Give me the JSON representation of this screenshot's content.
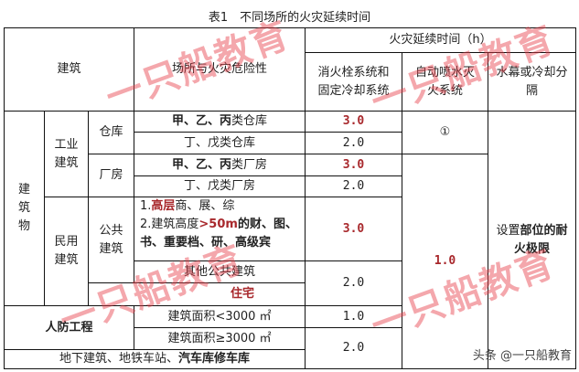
{
  "title": "表1　不同场所的火灾延续时间",
  "header": {
    "building": "建筑",
    "place_risk": "场所与火灾危险性",
    "duration": "火灾延续时间（h）",
    "hydrant": "消火栓系统和固定冷却系统",
    "sprinkler": "自动喷水灭火系统",
    "curtain": "水幕或冷却分隔"
  },
  "groups": {
    "building_obj": "建筑物",
    "industrial": "工业建筑",
    "warehouse": "仓库",
    "plant": "厂房",
    "civil": "民用建筑",
    "public": "公共建筑",
    "civil_defense": "人防工程"
  },
  "rows": [
    {
      "place_bold": "甲、乙、丙",
      "place_rest": "类仓库",
      "hydrant": "3.0"
    },
    {
      "place": "丁、戊类仓库",
      "hydrant": "2.0"
    },
    {
      "place_bold": "甲、乙、丙",
      "place_rest": "类厂房",
      "hydrant": "3.0"
    },
    {
      "place": "丁、戊类厂房",
      "hydrant": "2.0"
    },
    {
      "line1_a": "1.",
      "line1_red": "高层",
      "line1_b": "商、展、综",
      "line2_a": "2.建筑高度",
      "line2_red": ">50m",
      "line2_b": "的财、图、",
      "line3": "书、重要档、研、高级宾",
      "hydrant": "3.0"
    },
    {
      "place": "其他公共建筑"
    },
    {
      "place": "住宅",
      "hydrant": "2.0"
    },
    {
      "place": "建筑面积<3000 ㎡",
      "hydrant": "1.0"
    },
    {
      "place": "建筑面积≥3000 ㎡"
    },
    {
      "place": "地下建筑、地铁车站、",
      "place_bold": "汽车库修车库",
      "hydrant": "2.0"
    }
  ],
  "sprinkler": {
    "warehouse": "①",
    "others": "1.0"
  },
  "curtain": {
    "a": "设置",
    "b": "部位的耐火极限"
  },
  "watermark": "一只船教育",
  "footer": "头条 @一只船教育"
}
